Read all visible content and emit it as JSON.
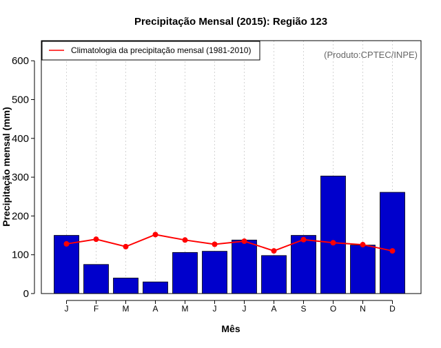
{
  "colors": {
    "bar": "#0000CC",
    "line": "#FF0000",
    "grid": "#D3D3D3",
    "credit": "#666666"
  },
  "chart_data": {
    "type": "bar",
    "title": "Precipitação Mensal (2015): Região 123",
    "xlabel": "Mês",
    "ylabel": "Precipitação mensal (mm)",
    "ylim": [
      0,
      650
    ],
    "yticks": [
      0,
      100,
      200,
      300,
      400,
      500,
      600
    ],
    "grid": "vertical-dotted",
    "categories": [
      "J",
      "F",
      "M",
      "A",
      "M",
      "J",
      "J",
      "A",
      "S",
      "O",
      "N",
      "D"
    ],
    "series": [
      {
        "name": "Precipitação mensal 2015",
        "kind": "bar",
        "values": [
          150,
          75,
          40,
          30,
          106,
          109,
          138,
          98,
          150,
          303,
          125,
          261
        ]
      },
      {
        "name": "Climatologia da precipitação mensal (1981-2010)",
        "kind": "line",
        "values": [
          128,
          140,
          121,
          152,
          138,
          127,
          135,
          110,
          139,
          131,
          126,
          110
        ]
      }
    ],
    "legend": {
      "placement": "top-left",
      "label": "Climatologia da precipitação mensal (1981-2010)"
    },
    "credit": "(Produto:CPTEC/INPE)"
  }
}
